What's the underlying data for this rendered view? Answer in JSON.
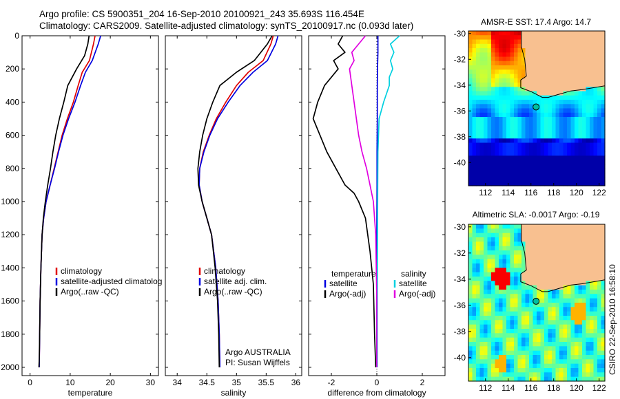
{
  "header": {
    "line1": "Argo profile: CS 5900351_204 16-Sep-2010 20100921_243 35.693S 116.454E",
    "line2": "Climatology: CARS2009. Satellite-adjusted climatology: synTS_20100917.nc (0.093d later)"
  },
  "side_stamp": "CSIRO 22-Sep-2010 16:58:10",
  "chart_data": [
    {
      "id": "temperature",
      "type": "line",
      "xlabel": "temperature",
      "ylabel": "",
      "xlim": [
        -2,
        32
      ],
      "ylim": [
        2050,
        0
      ],
      "xticks": [
        0,
        10,
        20,
        30
      ],
      "yticks": [
        0,
        200,
        400,
        600,
        800,
        1000,
        1200,
        1400,
        1600,
        1800,
        2000
      ],
      "legend": [
        "climatology",
        "satellite-adjusted climatolog",
        "Argo(..raw -QC)"
      ],
      "series": [
        {
          "name": "climatology",
          "color": "#e00000",
          "x": [
            16.2,
            15.8,
            14.8,
            13.0,
            12.0,
            10.8,
            9.3,
            8.0,
            7.0,
            6.0,
            5.0,
            4.0,
            3.4,
            3.0,
            2.7,
            2.5,
            2.4,
            2.3
          ],
          "y": [
            0,
            50,
            150,
            220,
            300,
            400,
            500,
            600,
            700,
            800,
            900,
            1000,
            1100,
            1200,
            1400,
            1600,
            1800,
            2000
          ]
        },
        {
          "name": "satellite-adjusted climatolog",
          "color": "#0000e0",
          "x": [
            17.6,
            17.0,
            15.5,
            13.8,
            12.6,
            11.2,
            9.6,
            8.2,
            7.1,
            6.1,
            5.0,
            4.0,
            3.4,
            3.0,
            2.7,
            2.5,
            2.4,
            2.3
          ],
          "y": [
            0,
            50,
            150,
            220,
            300,
            400,
            500,
            600,
            700,
            800,
            900,
            1000,
            1100,
            1200,
            1400,
            1600,
            1800,
            2000
          ]
        },
        {
          "name": "Argo(..raw -QC)",
          "color": "#000000",
          "x": [
            14.7,
            14.4,
            13.6,
            11.6,
            9.4,
            8.4,
            7.3,
            6.4,
            5.7,
            5.1,
            4.4,
            3.8,
            3.3,
            3.0,
            2.7,
            2.5,
            2.4,
            2.3,
            2.2
          ],
          "y": [
            0,
            50,
            120,
            200,
            300,
            400,
            500,
            600,
            700,
            800,
            900,
            1000,
            1100,
            1200,
            1400,
            1600,
            1800,
            1950,
            2000
          ]
        }
      ]
    },
    {
      "id": "salinity",
      "type": "line",
      "xlabel": "salinity",
      "ylabel": "",
      "xlim": [
        33.8,
        36.1
      ],
      "ylim": [
        2050,
        0
      ],
      "xticks": [
        34,
        34.5,
        35,
        35.5,
        36
      ],
      "yticks": [
        0,
        200,
        400,
        600,
        800,
        1000,
        1200,
        1400,
        1600,
        1800,
        2000
      ],
      "legend": [
        "climatology",
        "satellite adj. clim.",
        "Argo(..raw -QC)"
      ],
      "annotation": [
        "Argo AUSTRALIA",
        "PI: Susan Wijffels"
      ],
      "series": [
        {
          "name": "climatology",
          "color": "#e00000",
          "x": [
            35.62,
            35.58,
            35.45,
            35.2,
            35.0,
            34.82,
            34.66,
            34.54,
            34.44,
            34.38,
            34.37,
            34.42,
            34.5,
            34.58,
            34.65,
            34.69,
            34.71,
            34.72
          ],
          "y": [
            0,
            50,
            150,
            220,
            300,
            400,
            500,
            600,
            700,
            800,
            900,
            1000,
            1100,
            1200,
            1400,
            1600,
            1800,
            2000
          ]
        },
        {
          "name": "satellite adj. clim.",
          "color": "#0000e0",
          "x": [
            35.7,
            35.66,
            35.52,
            35.28,
            35.06,
            34.86,
            34.68,
            34.55,
            34.45,
            34.38,
            34.37,
            34.42,
            34.5,
            34.58,
            34.65,
            34.69,
            34.71,
            34.72
          ],
          "y": [
            0,
            50,
            150,
            220,
            300,
            400,
            500,
            600,
            700,
            800,
            900,
            1000,
            1100,
            1200,
            1400,
            1600,
            1800,
            2000
          ]
        },
        {
          "name": "Argo(..raw -QC)",
          "color": "#000000",
          "x": [
            35.6,
            35.52,
            35.3,
            35.0,
            34.72,
            34.6,
            34.5,
            34.43,
            34.38,
            34.35,
            34.36,
            34.42,
            34.5,
            34.58,
            34.64,
            34.68,
            34.7,
            34.71
          ],
          "y": [
            0,
            50,
            150,
            220,
            300,
            400,
            500,
            600,
            700,
            800,
            900,
            1000,
            1100,
            1200,
            1400,
            1600,
            1800,
            2000
          ]
        }
      ]
    },
    {
      "id": "difference",
      "type": "line",
      "xlabel": "difference from climatology",
      "ylabel": "",
      "xlim": [
        -3,
        3
      ],
      "ylim": [
        2050,
        0
      ],
      "xticks": [
        -2,
        0,
        2
      ],
      "yticks": [
        0,
        200,
        400,
        600,
        800,
        1000,
        1200,
        1400,
        1600,
        1800,
        2000
      ],
      "legend_left_title": "temperature",
      "legend_right_title": "salinity",
      "legend_left": [
        "satellite",
        "Argo(-adj)"
      ],
      "legend_right": [
        "satellite",
        "Argo(-adj)"
      ],
      "series": [
        {
          "name": "temperature satellite",
          "color": "#0000e0",
          "x": [
            0.05,
            0.05,
            0.03,
            0.02,
            0.02,
            0.02,
            0.01,
            0.01,
            0.0,
            0.0,
            0.0
          ],
          "y": [
            0,
            100,
            200,
            300,
            400,
            500,
            700,
            900,
            1200,
            1600,
            2000
          ]
        },
        {
          "name": "temperature Argo(-adj)",
          "color": "#000000",
          "x": [
            -1.5,
            -1.7,
            -1.4,
            -1.9,
            -1.7,
            -2.3,
            -2.6,
            -2.8,
            -2.5,
            -2.2,
            -1.8,
            -1.4,
            -1.0,
            -0.8,
            -0.5,
            -0.3,
            -0.15,
            -0.1,
            -0.05
          ],
          "y": [
            0,
            50,
            100,
            150,
            200,
            300,
            400,
            500,
            600,
            700,
            800,
            900,
            950,
            1000,
            1100,
            1300,
            1500,
            1800,
            2000
          ]
        },
        {
          "name": "salinity satellite",
          "color": "#00d0e0",
          "x": [
            1.0,
            0.6,
            0.75,
            0.6,
            0.7,
            0.55,
            0.55,
            0.3,
            0.1,
            0.05,
            0.04,
            0.03,
            0.02,
            0.02
          ],
          "y": [
            0,
            50,
            100,
            150,
            200,
            250,
            300,
            400,
            500,
            700,
            900,
            1200,
            1600,
            2000
          ]
        },
        {
          "name": "salinity Argo(-adj)",
          "color": "#e000e0",
          "x": [
            -0.5,
            -0.8,
            -1.1,
            -1.0,
            -1.2,
            -1.1,
            -1.0,
            -0.9,
            -0.8,
            -0.65,
            -0.45,
            -0.3,
            -0.15,
            -0.05,
            0.0,
            0.0
          ],
          "y": [
            0,
            50,
            100,
            150,
            200,
            300,
            400,
            500,
            600,
            700,
            800,
            900,
            1000,
            1200,
            1600,
            2000
          ]
        }
      ]
    },
    {
      "id": "sst-map",
      "type": "heatmap",
      "title": "AMSR-E SST: 17.4 Argo: 14.7",
      "xlim": [
        110.5,
        122.5
      ],
      "ylim": [
        -41.8,
        -29.8
      ],
      "xticks": [
        112,
        114,
        116,
        118,
        120,
        122
      ],
      "yticks": [
        -30,
        -32,
        -34,
        -36,
        -38,
        -40
      ],
      "marker": {
        "lon": 116.45,
        "lat": -35.69
      },
      "colors": {
        "land": "#f8c090",
        "coast": "#000000"
      }
    },
    {
      "id": "sla-map",
      "type": "heatmap",
      "title": "Altimetric SLA: -0.0017 Argo: -0.19",
      "xlim": [
        110.5,
        122.5
      ],
      "ylim": [
        -41.8,
        -29.8
      ],
      "xticks": [
        112,
        114,
        116,
        118,
        120,
        122
      ],
      "yticks": [
        -30,
        -32,
        -34,
        -36,
        -38,
        -40
      ],
      "marker": {
        "lon": 116.45,
        "lat": -35.69
      },
      "colors": {
        "land": "#f8c090",
        "coast": "#000000"
      }
    }
  ]
}
